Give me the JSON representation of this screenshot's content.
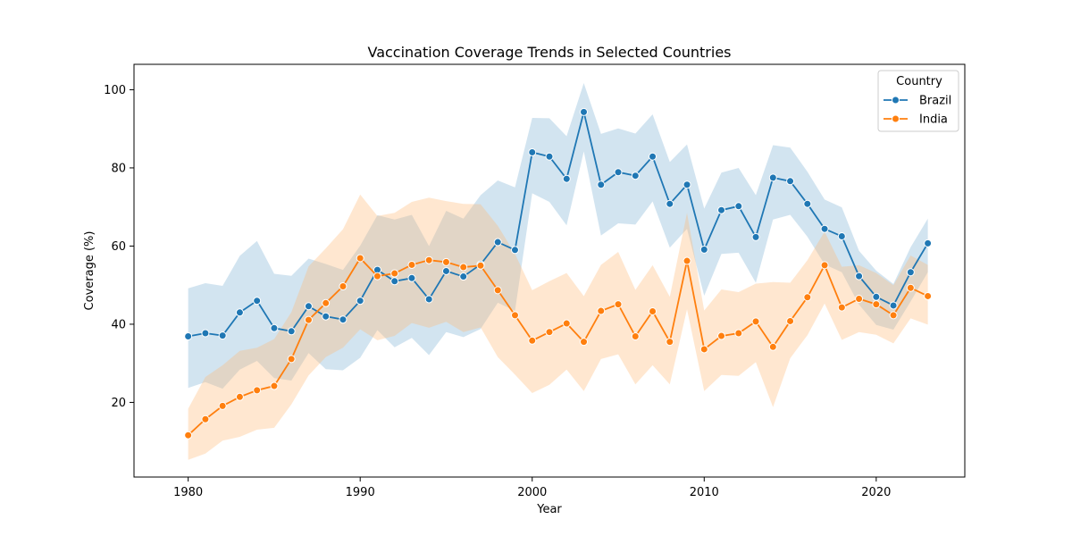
{
  "chart_data": {
    "type": "line",
    "title": "Vaccination Coverage Trends in Selected Countries",
    "xlabel": "Year",
    "ylabel": "Coverage (%)",
    "xlim": [
      1976.85,
      2025.15
    ],
    "ylim": [
      0.9,
      106.5
    ],
    "xticks": [
      1980,
      1990,
      2000,
      2010,
      2020
    ],
    "yticks": [
      20,
      40,
      60,
      80,
      100
    ],
    "grid": false,
    "legend": {
      "title": "Country",
      "placement": "top-right"
    },
    "x": [
      1980,
      1981,
      1982,
      1983,
      1984,
      1985,
      1986,
      1987,
      1988,
      1989,
      1990,
      1991,
      1992,
      1993,
      1994,
      1995,
      1996,
      1997,
      1998,
      1999,
      2000,
      2001,
      2002,
      2003,
      2004,
      2005,
      2006,
      2007,
      2008,
      2009,
      2010,
      2011,
      2012,
      2013,
      2014,
      2015,
      2016,
      2017,
      2018,
      2019,
      2020,
      2021,
      2022,
      2023
    ],
    "series": [
      {
        "name": "Brazil",
        "color": "#1f77b4",
        "band_color": "#1f77b4",
        "values": [
          36.9,
          37.7,
          37.1,
          43.0,
          46.0,
          39.0,
          38.2,
          44.6,
          42.0,
          41.2,
          46.0,
          53.9,
          51.0,
          51.8,
          46.4,
          53.6,
          52.2,
          55.3,
          61.0,
          59.0,
          84.0,
          82.9,
          77.2,
          94.3,
          75.7,
          78.9,
          78.0,
          82.9,
          70.8,
          75.7,
          59.1,
          69.2,
          70.2,
          62.3,
          77.5,
          76.6,
          70.8,
          64.4,
          62.5,
          52.3,
          47.0,
          44.8,
          53.3,
          60.7
        ],
        "lower": [
          23.7,
          25.2,
          23.5,
          28.4,
          30.6,
          26.2,
          25.6,
          32.6,
          28.5,
          28.2,
          31.4,
          38.5,
          34.1,
          36.5,
          32.1,
          38.0,
          36.7,
          38.8,
          45.5,
          43.4,
          73.5,
          71.3,
          65.3,
          84.2,
          62.7,
          65.8,
          65.5,
          71.4,
          59.6,
          64.4,
          47.3,
          58.0,
          58.3,
          50.6,
          66.8,
          68.0,
          62.4,
          55.3,
          53.3,
          45.0,
          39.8,
          38.6,
          45.8,
          53.3
        ],
        "upper": [
          49.2,
          50.5,
          49.8,
          57.5,
          61.3,
          52.9,
          52.4,
          56.8,
          55.4,
          53.9,
          60.1,
          67.9,
          66.8,
          68.0,
          60.0,
          69.0,
          67.0,
          73.0,
          76.8,
          75.0,
          92.8,
          92.7,
          88.1,
          101.7,
          88.7,
          90.1,
          88.8,
          93.7,
          81.5,
          86.0,
          69.6,
          78.8,
          80.0,
          73.0,
          85.8,
          85.2,
          79.0,
          71.9,
          69.9,
          58.8,
          53.7,
          50.3,
          59.7,
          67.0
        ]
      },
      {
        "name": "India",
        "color": "#ff7f0e",
        "band_color": "#ffbb78",
        "values": [
          11.6,
          15.7,
          19.1,
          21.4,
          23.1,
          24.2,
          31.1,
          41.1,
          45.4,
          49.7,
          56.9,
          52.3,
          53.0,
          55.2,
          56.4,
          55.9,
          54.6,
          55.0,
          48.7,
          42.3,
          35.8,
          38.0,
          40.2,
          35.5,
          43.4,
          45.1,
          36.9,
          43.3,
          35.5,
          56.2,
          33.6,
          37.0,
          37.7,
          40.7,
          34.2,
          40.8,
          46.9,
          55.1,
          44.3,
          46.5,
          45.1,
          42.3,
          49.3,
          47.2
        ],
        "lower": [
          5.3,
          6.9,
          10.2,
          11.2,
          13.0,
          13.5,
          19.5,
          26.9,
          31.6,
          34.0,
          38.7,
          35.9,
          37.0,
          40.3,
          39.1,
          40.6,
          38.0,
          39.2,
          31.6,
          27.1,
          22.4,
          24.5,
          28.4,
          22.9,
          31.1,
          32.3,
          24.6,
          29.5,
          24.6,
          43.8,
          22.9,
          27.0,
          26.8,
          30.3,
          18.8,
          31.3,
          37.2,
          45.3,
          36.0,
          38.0,
          37.3,
          35.1,
          41.5,
          39.9
        ],
        "upper": [
          18.4,
          26.5,
          29.5,
          33.2,
          34.0,
          36.2,
          43.1,
          54.8,
          59.4,
          64.3,
          73.2,
          67.7,
          68.5,
          71.3,
          72.4,
          71.5,
          70.8,
          70.7,
          65.2,
          58.0,
          48.7,
          51.0,
          53.1,
          47.2,
          55.2,
          58.5,
          48.8,
          55.1,
          47.0,
          68.5,
          43.5,
          48.9,
          48.2,
          50.4,
          50.8,
          50.6,
          56.4,
          63.7,
          54.7,
          55.1,
          53.1,
          50.0,
          57.6,
          55.2
        ]
      }
    ]
  }
}
